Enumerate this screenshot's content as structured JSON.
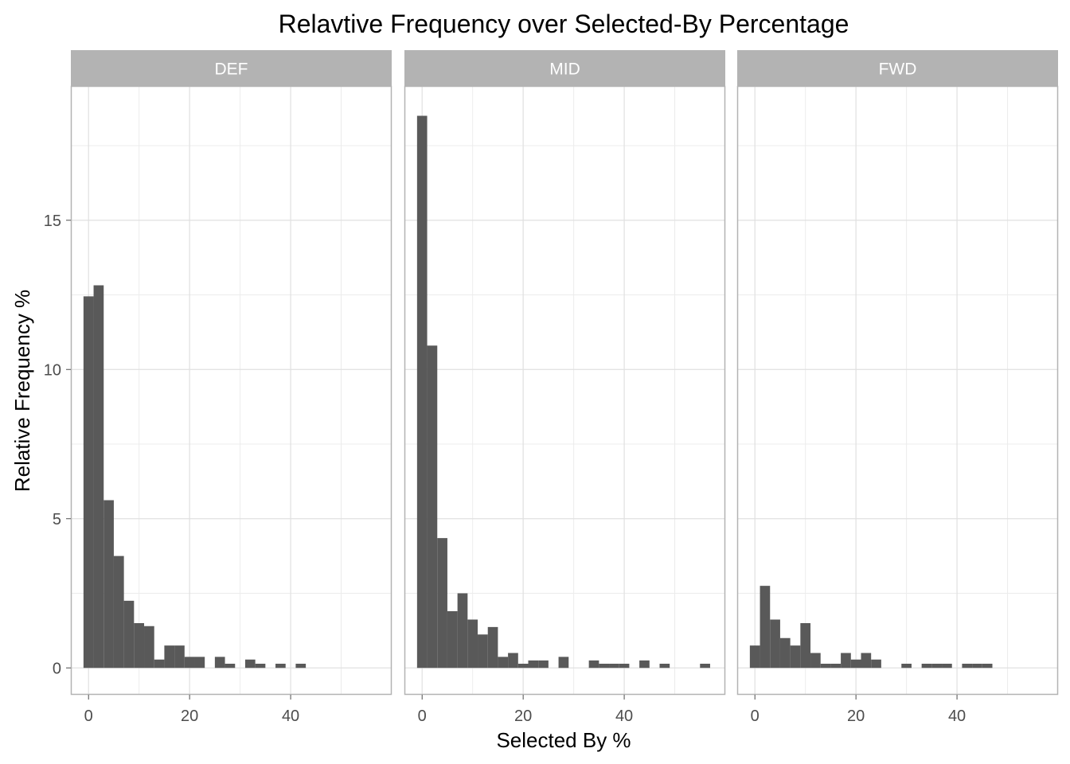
{
  "chart_data": {
    "type": "bar",
    "title": "Relavtive Frequency over Selected-By Percentage",
    "xlabel": "Selected By %",
    "ylabel": "Relative Frequency %",
    "xlim": [
      -3.5,
      60
    ],
    "ylim": [
      -0.9,
      19.5
    ],
    "x_ticks": [
      0,
      20,
      40
    ],
    "y_ticks": [
      0,
      5,
      10,
      15
    ],
    "bin_width": 2,
    "grid": true,
    "bar_color": "#595959",
    "strip_color": "#b3b3b3",
    "panel_border_color": "#b3b3b3",
    "grid_major_color": "#e0e0e0",
    "grid_minor_color": "#ececec",
    "panels": [
      {
        "label": "DEF",
        "bin_starts": [
          -1,
          1,
          3,
          5,
          7,
          9,
          11,
          13,
          15,
          17,
          19,
          21,
          23,
          25,
          27,
          29,
          31,
          33,
          35,
          37,
          39,
          41
        ],
        "values": [
          12.45,
          12.82,
          5.62,
          3.75,
          2.25,
          1.5,
          1.4,
          0.28,
          0.75,
          0.75,
          0.37,
          0.37,
          0,
          0.37,
          0.14,
          0,
          0.28,
          0.14,
          0,
          0.14,
          0,
          0.14
        ]
      },
      {
        "label": "MID",
        "bin_starts": [
          -1,
          1,
          3,
          5,
          7,
          9,
          11,
          13,
          15,
          17,
          19,
          21,
          23,
          25,
          27,
          29,
          31,
          33,
          35,
          37,
          39,
          41,
          43,
          45,
          47,
          49,
          51,
          53,
          55
        ],
        "values": [
          18.5,
          10.8,
          4.35,
          1.9,
          2.5,
          1.62,
          1.12,
          1.37,
          0.37,
          0.5,
          0.14,
          0.25,
          0.25,
          0,
          0.37,
          0,
          0,
          0.25,
          0.14,
          0.14,
          0.14,
          0,
          0.25,
          0,
          0.14,
          0,
          0,
          0,
          0.14
        ]
      },
      {
        "label": "FWD",
        "bin_starts": [
          -1,
          1,
          3,
          5,
          7,
          9,
          11,
          13,
          15,
          17,
          19,
          21,
          23,
          25,
          27,
          29,
          31,
          33,
          35,
          37,
          39,
          41,
          43,
          45
        ],
        "values": [
          0.75,
          2.75,
          1.62,
          1.0,
          0.75,
          1.5,
          0.5,
          0.14,
          0.14,
          0.5,
          0.28,
          0.5,
          0.28,
          0,
          0,
          0.14,
          0,
          0.14,
          0.14,
          0.14,
          0,
          0.14,
          0.14,
          0.14
        ]
      }
    ]
  }
}
